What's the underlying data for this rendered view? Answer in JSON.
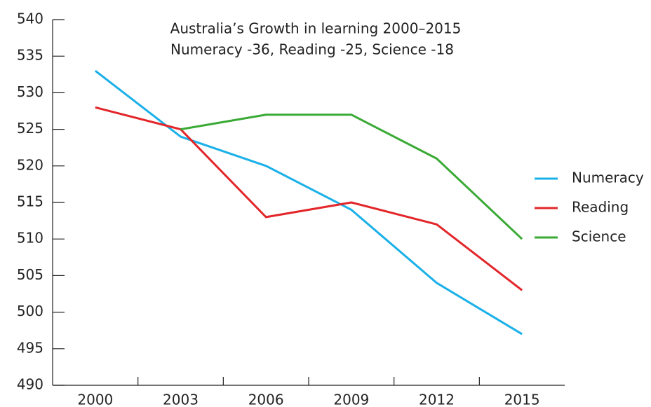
{
  "chart_data": {
    "type": "line",
    "title": "Australia’s Growth in learning 2000–2015",
    "subtitle": "Numeracy -36, Reading -25, Science -18",
    "categories": [
      "2000",
      "2003",
      "2006",
      "2009",
      "2012",
      "2015"
    ],
    "series": [
      {
        "name": "Numeracy",
        "color": "#1ab0e8",
        "values": [
          533,
          524,
          520,
          514,
          504,
          497
        ]
      },
      {
        "name": "Reading",
        "color": "#e2262a",
        "values": [
          528,
          525,
          513,
          515,
          512,
          503
        ]
      },
      {
        "name": "Science",
        "color": "#3aaa35",
        "values": [
          null,
          525,
          527,
          527,
          521,
          510
        ]
      }
    ],
    "ylim": [
      490,
      540
    ],
    "yticks": [
      490,
      495,
      500,
      505,
      510,
      515,
      520,
      525,
      530,
      535,
      540
    ],
    "legend": "right"
  }
}
